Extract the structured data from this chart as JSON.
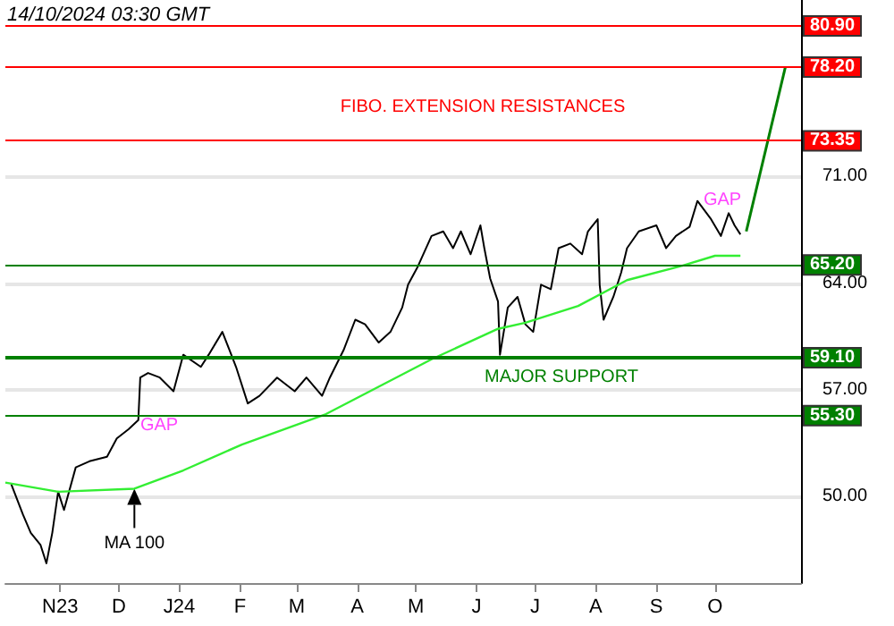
{
  "chart_data": {
    "type": "line",
    "xlim": [
      "2023-10-04",
      "2024-11-14"
    ],
    "ylim": [
      44.3,
      82.6
    ],
    "xticks": [
      {
        "value": "2023-11-01",
        "label": "N23"
      },
      {
        "value": "2023-12-01",
        "label": "D"
      },
      {
        "value": "2024-01-01",
        "label": "J24"
      },
      {
        "value": "2024-02-01",
        "label": "F"
      },
      {
        "value": "2024-03-01",
        "label": "M"
      },
      {
        "value": "2024-04-01",
        "label": "A"
      },
      {
        "value": "2024-05-01",
        "label": "M"
      },
      {
        "value": "2024-06-01",
        "label": "J"
      },
      {
        "value": "2024-07-01",
        "label": "J"
      },
      {
        "value": "2024-08-01",
        "label": "A"
      },
      {
        "value": "2024-09-01",
        "label": "S"
      },
      {
        "value": "2024-10-01",
        "label": "O"
      }
    ],
    "yticks": [
      {
        "value": 50,
        "label": "50.00"
      },
      {
        "value": 57,
        "label": "57.00"
      },
      {
        "value": 64,
        "label": "64.00"
      },
      {
        "value": 71,
        "label": "71.00"
      }
    ],
    "grid": "y",
    "marker": "none",
    "line_style": "solid",
    "series": [
      {
        "color": "#000000",
        "x": [
          "2023-10-07",
          "2023-10-13",
          "2023-10-17",
          "2023-10-22",
          "2023-10-25",
          "2023-10-28",
          "2023-10-31",
          "2023-11-03",
          "2023-11-09",
          "2023-11-16",
          "2023-11-25",
          "2023-11-30",
          "2023-12-06",
          "2023-12-11",
          "2023-12-12",
          "2023-12-16",
          "2023-12-22",
          "2023-12-29",
          "2024-01-03",
          "2024-01-12",
          "2024-01-16",
          "2024-01-23",
          "2024-01-30",
          "2024-02-05",
          "2024-02-11",
          "2024-02-20",
          "2024-02-29",
          "2024-03-06",
          "2024-03-14",
          "2024-03-18",
          "2024-03-25",
          "2024-03-31",
          "2024-04-05",
          "2024-04-12",
          "2024-04-18",
          "2024-04-24",
          "2024-04-27",
          "2024-05-02",
          "2024-05-09",
          "2024-05-15",
          "2024-05-20",
          "2024-05-24",
          "2024-05-29",
          "2024-06-03",
          "2024-06-05",
          "2024-06-08",
          "2024-06-12",
          "2024-06-13",
          "2024-06-17",
          "2024-06-22",
          "2024-06-26",
          "2024-06-30",
          "2024-07-04",
          "2024-07-09",
          "2024-07-13",
          "2024-07-19",
          "2024-07-25",
          "2024-07-28",
          "2024-08-02",
          "2024-08-03",
          "2024-08-05",
          "2024-08-10",
          "2024-08-14",
          "2024-08-17",
          "2024-08-23",
          "2024-09-01",
          "2024-09-06",
          "2024-09-11",
          "2024-09-18",
          "2024-09-22",
          "2024-09-29",
          "2024-10-04",
          "2024-10-08",
          "2024-10-11",
          "2024-10-14"
        ],
        "values": [
          50.8,
          48.8,
          47.6,
          46.8,
          45.6,
          47.6,
          50.3,
          49.1,
          51.9,
          52.3,
          52.6,
          53.8,
          54.4,
          55.0,
          57.8,
          58.1,
          57.8,
          56.9,
          59.3,
          58.5,
          59.3,
          60.8,
          58.5,
          56.1,
          56.6,
          57.8,
          56.9,
          57.8,
          56.6,
          57.8,
          59.6,
          61.6,
          61.3,
          60.1,
          60.8,
          62.4,
          63.9,
          65.1,
          67.1,
          67.4,
          66.3,
          67.4,
          65.9,
          67.8,
          66.3,
          64.3,
          62.8,
          59.3,
          62.4,
          63.1,
          61.3,
          60.8,
          63.9,
          63.6,
          66.3,
          66.6,
          65.9,
          67.4,
          68.2,
          63.9,
          61.6,
          63.1,
          64.7,
          66.3,
          67.4,
          67.8,
          66.3,
          67.1,
          67.7,
          69.4,
          68.2,
          67.1,
          68.6,
          67.8,
          67.2
        ]
      },
      {
        "color": "#33ee33",
        "x": [
          "2023-10-04",
          "2023-10-31",
          "2023-12-09",
          "2024-01-03",
          "2024-02-02",
          "2024-03-16",
          "2024-05-09",
          "2024-06-12",
          "2024-06-26",
          "2024-07-23",
          "2024-08-17",
          "2024-09-13",
          "2024-10-01",
          "2024-10-14"
        ],
        "values": [
          50.9,
          50.3,
          50.5,
          51.7,
          53.4,
          55.4,
          59.0,
          61.0,
          61.4,
          62.5,
          64.2,
          65.1,
          65.8,
          65.8
        ]
      },
      {
        "color": "#008000",
        "x": [
          "2024-10-17",
          "2024-11-06"
        ],
        "values": [
          67.4,
          78.2
        ]
      }
    ],
    "ref_lines": [
      {
        "axis": "y",
        "value": 80.9,
        "label": "80.90",
        "color": "#ff0000"
      },
      {
        "axis": "y",
        "value": 78.2,
        "label": "78.20",
        "color": "#ff0000"
      },
      {
        "axis": "y",
        "value": 73.35,
        "label": "73.35",
        "color": "#ff0000"
      },
      {
        "axis": "y",
        "value": 65.2,
        "label": "65.20",
        "color": "#008000"
      },
      {
        "axis": "y",
        "value": 59.1,
        "label": "59.10",
        "color": "#008000"
      },
      {
        "axis": "y",
        "value": 55.3,
        "label": "55.30",
        "color": "#008000"
      }
    ],
    "annotations": [
      "14/10/2024 03:30 GMT",
      "FIBO. EXTENSION RESISTANCES",
      "MAJOR SUPPORT",
      "GAP",
      "GAP",
      {
        "text": "MA 100",
        "x": "2023-12-09",
        "y": 50.5
      }
    ]
  }
}
